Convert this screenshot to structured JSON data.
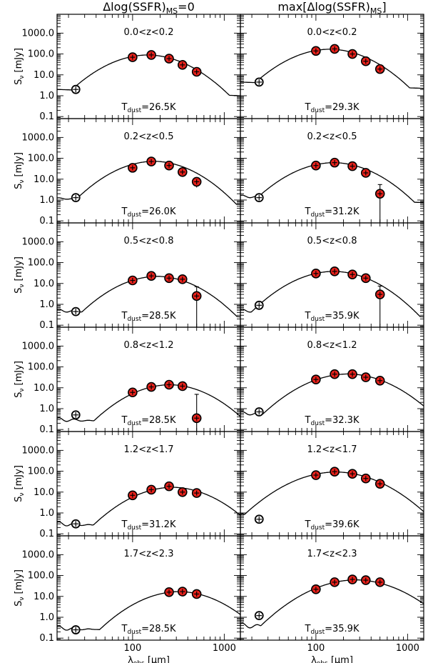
{
  "chart_data": {
    "type": "scatter",
    "columns": [
      {
        "title_main": "Δlog(SSFR)",
        "title_sub": "MS",
        "title_tail": "=0"
      },
      {
        "title_main": "max[Δlog(SSFR)",
        "title_sub": "MS",
        "title_tail": "]"
      }
    ],
    "xlabel_main": "λ",
    "xlabel_sub": "obs",
    "xlabel_unit": " [μm]",
    "ylabel_main": "S",
    "ylabel_sub": "ν",
    "ylabel_unit": " [mJy]",
    "xlim": [
      15,
      1500
    ],
    "ylim": [
      0.08,
      8000
    ],
    "xticks": [
      "100",
      "1000"
    ],
    "yticks": [
      "0.1",
      "1.0",
      "10.0",
      "100.0",
      "1000.0"
    ],
    "panels": [
      {
        "redshift": "0.0<z<0.2",
        "tdust_label": "T",
        "tdust_sub": "dust",
        "tdust_value": "=26.5K",
        "open": {
          "x": 24,
          "y": 2.0,
          "err_lo": 0,
          "err_hi": 0
        },
        "points": [
          {
            "x": 100,
            "y": 70,
            "err_lo": 0,
            "err_hi": 0
          },
          {
            "x": 160,
            "y": 90,
            "err_lo": 0,
            "err_hi": 0
          },
          {
            "x": 250,
            "y": 60,
            "err_lo": 0,
            "err_hi": 0
          },
          {
            "x": 350,
            "y": 30,
            "err_lo": 0,
            "err_hi": 0
          },
          {
            "x": 500,
            "y": 14,
            "err_lo": 0,
            "err_hi": 0
          }
        ],
        "curve": {
          "peak_x": 150,
          "peak_y": 90,
          "w": 0.46,
          "base_y": 2.0,
          "wiggle": 0
        }
      },
      {
        "redshift": "0.0<z<0.2",
        "tdust_label": "T",
        "tdust_sub": "dust",
        "tdust_value": "=29.3K",
        "open": {
          "x": 24,
          "y": 4.5,
          "err_lo": 0,
          "err_hi": 0
        },
        "points": [
          {
            "x": 100,
            "y": 140,
            "err_lo": 0,
            "err_hi": 0
          },
          {
            "x": 160,
            "y": 175,
            "err_lo": 0,
            "err_hi": 0
          },
          {
            "x": 250,
            "y": 100,
            "err_lo": 0,
            "err_hi": 0
          },
          {
            "x": 350,
            "y": 45,
            "err_lo": 0,
            "err_hi": 0
          },
          {
            "x": 500,
            "y": 19,
            "err_lo": 0,
            "err_hi": 0
          }
        ],
        "curve": {
          "peak_x": 145,
          "peak_y": 170,
          "w": 0.46,
          "base_y": 4.5,
          "wiggle": 0
        }
      },
      {
        "redshift": "0.2<z<0.5",
        "tdust_label": "T",
        "tdust_sub": "dust",
        "tdust_value": "=26.0K",
        "open": {
          "x": 24,
          "y": 1.3,
          "err_lo": 0,
          "err_hi": 0
        },
        "points": [
          {
            "x": 100,
            "y": 35,
            "err_lo": 0,
            "err_hi": 0
          },
          {
            "x": 160,
            "y": 70,
            "err_lo": 0,
            "err_hi": 0
          },
          {
            "x": 250,
            "y": 45,
            "err_lo": 0,
            "err_hi": 0
          },
          {
            "x": 350,
            "y": 22,
            "err_lo": 0,
            "err_hi": 0
          },
          {
            "x": 500,
            "y": 7.5,
            "err_lo": 3.5,
            "err_hi": 4
          }
        ],
        "curve": {
          "peak_x": 175,
          "peak_y": 72,
          "w": 0.45,
          "base_y": 1.2,
          "wiggle": 0.15
        }
      },
      {
        "redshift": "0.2<z<0.5",
        "tdust_label": "T",
        "tdust_sub": "dust",
        "tdust_value": "=31.2K",
        "open": {
          "x": 24,
          "y": 1.3,
          "err_lo": 0,
          "err_hi": 0
        },
        "points": [
          {
            "x": 100,
            "y": 45,
            "err_lo": 0,
            "err_hi": 0
          },
          {
            "x": 160,
            "y": 62,
            "err_lo": 0,
            "err_hi": 0
          },
          {
            "x": 250,
            "y": 42,
            "err_lo": 0,
            "err_hi": 0
          },
          {
            "x": 350,
            "y": 20,
            "err_lo": 0,
            "err_hi": 0
          },
          {
            "x": 500,
            "y": 2.0,
            "err_lo": 1.92,
            "err_hi": 3.5
          }
        ],
        "curve": {
          "peak_x": 160,
          "peak_y": 62,
          "w": 0.46,
          "base_y": 1.5,
          "wiggle": 0.3
        }
      },
      {
        "redshift": "0.5<z<0.8",
        "tdust_label": "T",
        "tdust_sub": "dust",
        "tdust_value": "=28.5K",
        "open": {
          "x": 24,
          "y": 0.45,
          "err_lo": 0,
          "err_hi": 0
        },
        "points": [
          {
            "x": 100,
            "y": 14,
            "err_lo": 0,
            "err_hi": 0
          },
          {
            "x": 160,
            "y": 23,
            "err_lo": 0,
            "err_hi": 0
          },
          {
            "x": 250,
            "y": 18,
            "err_lo": 0,
            "err_hi": 0
          },
          {
            "x": 350,
            "y": 16,
            "err_lo": 0,
            "err_hi": 0
          },
          {
            "x": 500,
            "y": 2.5,
            "err_lo": 2.42,
            "err_hi": 4.5
          }
        ],
        "curve": {
          "peak_x": 190,
          "peak_y": 22,
          "w": 0.45,
          "base_y": 0.5,
          "wiggle": 0.35
        }
      },
      {
        "redshift": "0.5<z<0.8",
        "tdust_label": "T",
        "tdust_sub": "dust",
        "tdust_value": "=35.9K",
        "open": {
          "x": 24,
          "y": 0.9,
          "err_lo": 0,
          "err_hi": 0
        },
        "points": [
          {
            "x": 100,
            "y": 30,
            "err_lo": 0,
            "err_hi": 0
          },
          {
            "x": 160,
            "y": 38,
            "err_lo": 0,
            "err_hi": 0
          },
          {
            "x": 250,
            "y": 27,
            "err_lo": 0,
            "err_hi": 0
          },
          {
            "x": 350,
            "y": 18,
            "err_lo": 0,
            "err_hi": 0
          },
          {
            "x": 500,
            "y": 3.0,
            "err_lo": 2.92,
            "err_hi": 4.5
          }
        ],
        "curve": {
          "peak_x": 160,
          "peak_y": 38,
          "w": 0.46,
          "base_y": 0.5,
          "wiggle": 0.35
        }
      },
      {
        "redshift": "0.8<z<1.2",
        "tdust_label": "T",
        "tdust_sub": "dust",
        "tdust_value": "=28.5K",
        "open": {
          "x": 24,
          "y": 0.5,
          "err_lo": 0,
          "err_hi": 0
        },
        "points": [
          {
            "x": 100,
            "y": 6,
            "err_lo": 0,
            "err_hi": 0
          },
          {
            "x": 160,
            "y": 11,
            "err_lo": 0,
            "err_hi": 0
          },
          {
            "x": 250,
            "y": 14,
            "err_lo": 0,
            "err_hi": 0
          },
          {
            "x": 350,
            "y": 12,
            "err_lo": 0,
            "err_hi": 0
          },
          {
            "x": 500,
            "y": 0.35,
            "err_lo": 0.27,
            "err_hi": 4.5
          }
        ],
        "curve": {
          "peak_x": 260,
          "peak_y": 14,
          "w": 0.45,
          "base_y": 0.3,
          "wiggle": 0.45
        }
      },
      {
        "redshift": "0.8<z<1.2",
        "tdust_label": "T",
        "tdust_sub": "dust",
        "tdust_value": "=32.3K",
        "open": {
          "x": 24,
          "y": 0.7,
          "err_lo": 0,
          "err_hi": 0
        },
        "points": [
          {
            "x": 100,
            "y": 25,
            "err_lo": 0,
            "err_hi": 0
          },
          {
            "x": 160,
            "y": 45,
            "err_lo": 0,
            "err_hi": 0
          },
          {
            "x": 250,
            "y": 45,
            "err_lo": 0,
            "err_hi": 0
          },
          {
            "x": 350,
            "y": 32,
            "err_lo": 0,
            "err_hi": 0
          },
          {
            "x": 500,
            "y": 22,
            "err_lo": 0,
            "err_hi": 0
          }
        ],
        "curve": {
          "peak_x": 230,
          "peak_y": 46,
          "w": 0.48,
          "base_y": 0.6,
          "wiggle": 0.4
        }
      },
      {
        "redshift": "1.2<z<1.7",
        "tdust_label": "T",
        "tdust_sub": "dust",
        "tdust_value": "=31.2K",
        "open": {
          "x": 24,
          "y": 0.3,
          "err_lo": 0,
          "err_hi": 0
        },
        "points": [
          {
            "x": 100,
            "y": 7,
            "err_lo": 0,
            "err_hi": 0
          },
          {
            "x": 160,
            "y": 13,
            "err_lo": 0,
            "err_hi": 0
          },
          {
            "x": 250,
            "y": 19,
            "err_lo": 0,
            "err_hi": 0
          },
          {
            "x": 350,
            "y": 10,
            "err_lo": 0,
            "err_hi": 0
          },
          {
            "x": 500,
            "y": 9,
            "err_lo": 0,
            "err_hi": 0
          }
        ],
        "curve": {
          "peak_x": 280,
          "peak_y": 17,
          "w": 0.46,
          "base_y": 0.3,
          "wiggle": 0.5
        }
      },
      {
        "redshift": "1.2<z<1.7",
        "tdust_label": "T",
        "tdust_sub": "dust",
        "tdust_value": "=39.6K",
        "open": {
          "x": 24,
          "y": 0.5,
          "err_lo": 0,
          "err_hi": 0
        },
        "points": [
          {
            "x": 100,
            "y": 65,
            "err_lo": 0,
            "err_hi": 0
          },
          {
            "x": 160,
            "y": 95,
            "err_lo": 0,
            "err_hi": 0
          },
          {
            "x": 250,
            "y": 75,
            "err_lo": 0,
            "err_hi": 0
          },
          {
            "x": 350,
            "y": 45,
            "err_lo": 0,
            "err_hi": 0
          },
          {
            "x": 500,
            "y": 25,
            "err_lo": 0,
            "err_hi": 0
          }
        ],
        "curve": {
          "peak_x": 170,
          "peak_y": 92,
          "w": 0.5,
          "base_y": 0.7,
          "wiggle": 0.6
        }
      },
      {
        "redshift": "1.7<z<2.3",
        "tdust_label": "T",
        "tdust_sub": "dust",
        "tdust_value": "=28.5K",
        "open": {
          "x": 24,
          "y": 0.25,
          "err_lo": 0,
          "err_hi": 0
        },
        "points": [
          {
            "x": 250,
            "y": 16,
            "err_lo": 0,
            "err_hi": 0
          },
          {
            "x": 350,
            "y": 17,
            "err_lo": 0,
            "err_hi": 0
          },
          {
            "x": 500,
            "y": 13,
            "err_lo": 0,
            "err_hi": 0
          }
        ],
        "curve": {
          "peak_x": 330,
          "peak_y": 17,
          "w": 0.46,
          "base_y": 0.3,
          "wiggle": 0.5
        }
      },
      {
        "redshift": "1.7<z<2.3",
        "tdust_label": "T",
        "tdust_sub": "dust",
        "tdust_value": "=35.9K",
        "open": {
          "x": 24,
          "y": 1.2,
          "err_lo": 0,
          "err_hi": 0
        },
        "points": [
          {
            "x": 100,
            "y": 22,
            "err_lo": 0,
            "err_hi": 0
          },
          {
            "x": 160,
            "y": 48,
            "err_lo": 0,
            "err_hi": 0
          },
          {
            "x": 250,
            "y": 65,
            "err_lo": 0,
            "err_hi": 0
          },
          {
            "x": 350,
            "y": 60,
            "err_lo": 0,
            "err_hi": 0
          },
          {
            "x": 500,
            "y": 48,
            "err_lo": 0,
            "err_hi": 0
          }
        ],
        "curve": {
          "peak_x": 280,
          "peak_y": 62,
          "w": 0.5,
          "base_y": 0.4,
          "wiggle": 0.6
        }
      }
    ]
  }
}
